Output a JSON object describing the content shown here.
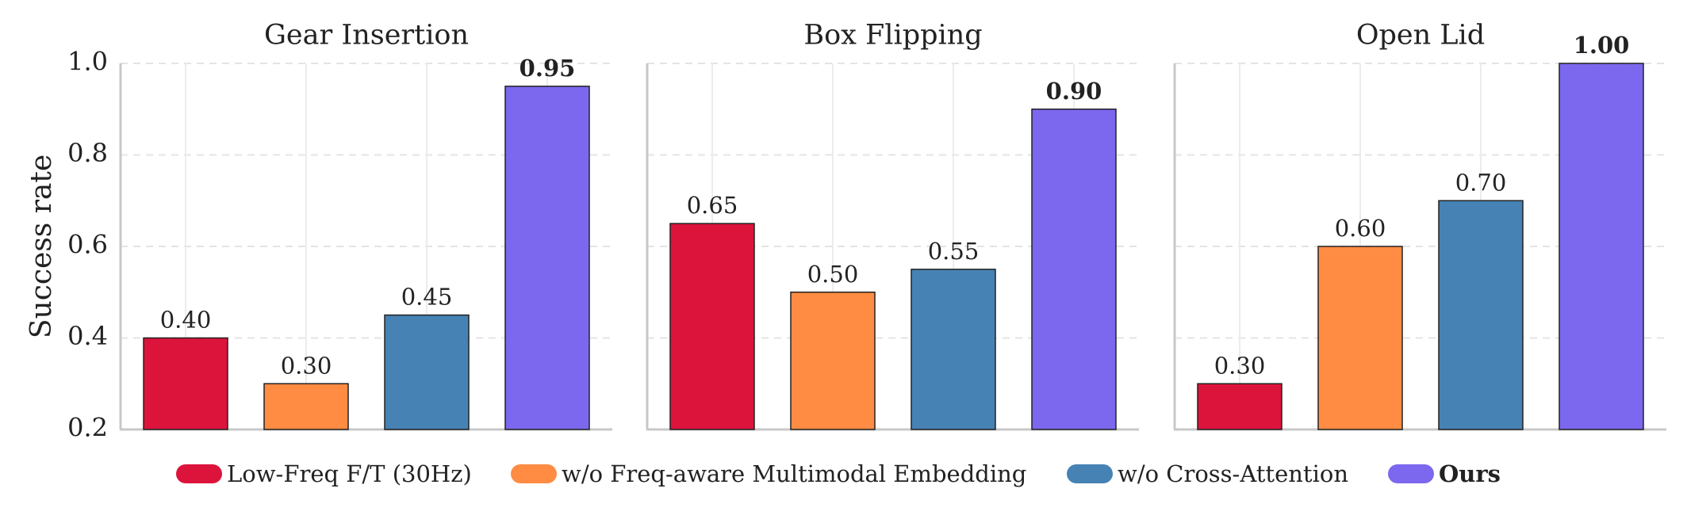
{
  "chart_data": {
    "type": "bar",
    "ylabel": "Success rate",
    "ylim": [
      0.2,
      1.0
    ],
    "yticks": [
      "0.2",
      "0.4",
      "0.6",
      "0.8",
      "1.0"
    ],
    "grid": true,
    "legend_position": "bottom",
    "series": [
      {
        "name": "Low-Freq F/T (30Hz)",
        "color": "#DC143C"
      },
      {
        "name": "w/o Freq-aware Multimodal Embedding",
        "color": "#FF8C42"
      },
      {
        "name": "w/o Cross-Attention",
        "color": "#4682B4"
      },
      {
        "name": "Ours",
        "color": "#7B68EE",
        "bold": true
      }
    ],
    "panels": [
      {
        "title": "Gear Insertion",
        "values": [
          0.4,
          0.3,
          0.45,
          0.95
        ],
        "labels": [
          "0.40",
          "0.30",
          "0.45",
          "0.95"
        ]
      },
      {
        "title": "Box Flipping",
        "values": [
          0.65,
          0.5,
          0.55,
          0.9
        ],
        "labels": [
          "0.65",
          "0.50",
          "0.55",
          "0.90"
        ]
      },
      {
        "title": "Open Lid",
        "values": [
          0.3,
          0.6,
          0.7,
          1.0
        ],
        "labels": [
          "0.30",
          "0.60",
          "0.70",
          "1.00"
        ]
      }
    ]
  }
}
